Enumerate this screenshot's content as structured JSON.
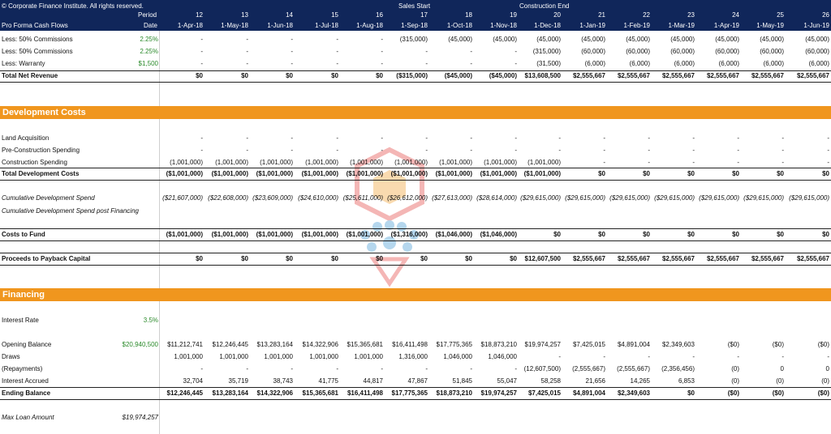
{
  "header": {
    "copyright": "© Corporate Finance Institute. All rights reserved.",
    "period_label": "Period",
    "date_label": "Date",
    "sheet_title": "Pro Forma Cash Flows",
    "sales_start": "Sales Start",
    "construction_end": "Construction End",
    "periods": [
      "12",
      "13",
      "14",
      "15",
      "16",
      "17",
      "18",
      "19",
      "20",
      "21",
      "22",
      "23",
      "24",
      "25",
      "26"
    ],
    "dates": [
      "1-Apr-18",
      "1-May-18",
      "1-Jun-18",
      "1-Jul-18",
      "1-Aug-18",
      "1-Sep-18",
      "1-Oct-18",
      "1-Nov-18",
      "1-Dec-18",
      "1-Jan-19",
      "1-Feb-19",
      "1-Mar-19",
      "1-Apr-19",
      "1-May-19",
      "1-Jun-19"
    ]
  },
  "revenue": {
    "rows": [
      {
        "label": "Less:  50% Commissions",
        "pct": "2.25%",
        "values": [
          "-",
          "-",
          "-",
          "-",
          "-",
          "(315,000)",
          "(45,000)",
          "(45,000)",
          "(45,000)",
          "(45,000)",
          "(45,000)",
          "(45,000)",
          "(45,000)",
          "(45,000)",
          "(45,000)"
        ]
      },
      {
        "label": "Less:  50% Commissions",
        "pct": "2.25%",
        "values": [
          "-",
          "-",
          "-",
          "-",
          "-",
          "-",
          "-",
          "-",
          "(315,000)",
          "(60,000)",
          "(60,000)",
          "(60,000)",
          "(60,000)",
          "(60,000)",
          "(60,000)"
        ]
      },
      {
        "label": "Less:  Warranty",
        "pct": "$1,500",
        "values": [
          "-",
          "-",
          "-",
          "-",
          "-",
          "-",
          "-",
          "-",
          "(31,500)",
          "(6,000)",
          "(6,000)",
          "(6,000)",
          "(6,000)",
          "(6,000)",
          "(6,000)"
        ]
      }
    ],
    "total": {
      "label": "Total Net Revenue",
      "values": [
        "$0",
        "$0",
        "$0",
        "$0",
        "$0",
        "($315,000)",
        "($45,000)",
        "($45,000)",
        "$13,608,500",
        "$2,555,667",
        "$2,555,667",
        "$2,555,667",
        "$2,555,667",
        "$2,555,667",
        "$2,555,667"
      ]
    }
  },
  "development": {
    "title": "Development Costs",
    "rows": [
      {
        "label": "Land Acquisition",
        "values": [
          "-",
          "-",
          "-",
          "-",
          "-",
          "-",
          "-",
          "-",
          "-",
          "-",
          "-",
          "-",
          "-",
          "-",
          "-"
        ]
      },
      {
        "label": "Pre-Construction Spending",
        "values": [
          "-",
          "-",
          "-",
          "-",
          "-",
          "-",
          "-",
          "-",
          "-",
          "-",
          "-",
          "-",
          "-",
          "-",
          "-"
        ]
      },
      {
        "label": "Construction Spending",
        "values": [
          "(1,001,000)",
          "(1,001,000)",
          "(1,001,000)",
          "(1,001,000)",
          "(1,001,000)",
          "(1,001,000)",
          "(1,001,000)",
          "(1,001,000)",
          "(1,001,000)",
          "-",
          "-",
          "-",
          "-",
          "-",
          "-"
        ]
      }
    ],
    "total": {
      "label": "Total Development Costs",
      "values": [
        "($1,001,000)",
        "($1,001,000)",
        "($1,001,000)",
        "($1,001,000)",
        "($1,001,000)",
        "($1,001,000)",
        "($1,001,000)",
        "($1,001,000)",
        "($1,001,000)",
        "$0",
        "$0",
        "$0",
        "$0",
        "$0",
        "$0"
      ]
    },
    "cumulative": {
      "label": "Cumulative Development Spend",
      "values": [
        "($21,607,000)",
        "($22,608,000)",
        "($23,609,000)",
        "($24,610,000)",
        "($25,611,000)",
        "($26,612,000)",
        "($27,613,000)",
        "($28,614,000)",
        "($29,615,000)",
        "($29,615,000)",
        "($29,615,000)",
        "($29,615,000)",
        "($29,615,000)",
        "($29,615,000)",
        "($29,615,000)"
      ]
    },
    "cumulative_post_label": "Cumulative Development Spend post Financing",
    "costs_to_fund": {
      "label": "Costs to Fund",
      "values": [
        "($1,001,000)",
        "($1,001,000)",
        "($1,001,000)",
        "($1,001,000)",
        "($1,001,000)",
        "($1,316,000)",
        "($1,046,000)",
        "($1,046,000)",
        "$0",
        "$0",
        "$0",
        "$0",
        "$0",
        "$0",
        "$0"
      ]
    },
    "proceeds": {
      "label": "Proceeds to Payback Capital",
      "values": [
        "$0",
        "$0",
        "$0",
        "$0",
        "$0",
        "$0",
        "$0",
        "$0",
        "$12,607,500",
        "$2,555,667",
        "$2,555,667",
        "$2,555,667",
        "$2,555,667",
        "$2,555,667",
        "$2,555,667"
      ]
    }
  },
  "financing": {
    "title": "Financing",
    "interest_rate_label": "Interest Rate",
    "interest_rate": "3.5%",
    "opening": {
      "label": "Opening Balance",
      "pct": "$20,940,500",
      "values": [
        "$11,212,741",
        "$12,246,445",
        "$13,283,164",
        "$14,322,906",
        "$15,365,681",
        "$16,411,498",
        "$17,775,365",
        "$18,873,210",
        "$19,974,257",
        "$7,425,015",
        "$4,891,004",
        "$2,349,603",
        "($0)",
        "($0)",
        "($0)"
      ]
    },
    "draws": {
      "label": "Draws",
      "values": [
        "1,001,000",
        "1,001,000",
        "1,001,000",
        "1,001,000",
        "1,001,000",
        "1,316,000",
        "1,046,000",
        "1,046,000",
        "-",
        "-",
        "-",
        "-",
        "-",
        "-",
        "-"
      ]
    },
    "repayments": {
      "label": "(Repayments)",
      "values": [
        "-",
        "-",
        "-",
        "-",
        "-",
        "-",
        "-",
        "-",
        "(12,607,500)",
        "(2,555,667)",
        "(2,555,667)",
        "(2,356,456)",
        "(0)",
        "0",
        "0"
      ]
    },
    "interest": {
      "label": "Interest Accrued",
      "values": [
        "32,704",
        "35,719",
        "38,743",
        "41,775",
        "44,817",
        "47,867",
        "51,845",
        "55,047",
        "58,258",
        "21,656",
        "14,265",
        "6,853",
        "(0)",
        "(0)",
        "(0)"
      ]
    },
    "ending": {
      "label": "Ending Balance",
      "values": [
        "$12,246,445",
        "$13,283,164",
        "$14,322,906",
        "$15,365,681",
        "$16,411,498",
        "$17,775,365",
        "$18,873,210",
        "$19,974,257",
        "$7,425,015",
        "$4,891,004",
        "$2,349,603",
        "$0",
        "($0)",
        "($0)",
        "($0)"
      ]
    },
    "max_loan_label": "Max Loan Amount",
    "max_loan": "$19,974,257"
  }
}
